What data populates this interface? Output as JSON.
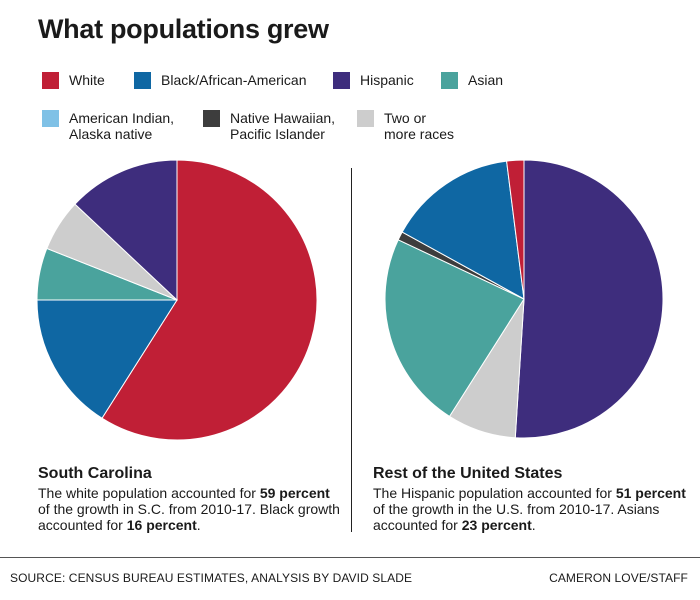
{
  "title": "What populations grew",
  "legend": [
    {
      "lines": [
        "White"
      ],
      "color": "#c01f36"
    },
    {
      "lines": [
        "Black/African-American"
      ],
      "color": "#0f67a3"
    },
    {
      "lines": [
        "Hispanic"
      ],
      "color": "#3e2d7d"
    },
    {
      "lines": [
        "Asian"
      ],
      "color": "#4aa39d"
    },
    {
      "lines": [
        "American Indian,",
        "Alaska native"
      ],
      "color": "#7fc1e6"
    },
    {
      "lines": [
        "Native Hawaiian,",
        "Pacific Islander"
      ],
      "color": "#3d3d3d"
    },
    {
      "lines": [
        "Two or",
        "more races"
      ],
      "color": "#cdcdcd"
    }
  ],
  "chart_data": [
    {
      "type": "pie",
      "title": "South Carolina",
      "categories": [
        "White",
        "Black/African-American",
        "Asian",
        "Two or more races",
        "Hispanic"
      ],
      "values": [
        59,
        16,
        6,
        6,
        13
      ],
      "colors": [
        "#c01f36",
        "#0f67a3",
        "#4aa39d",
        "#cdcdcd",
        "#3e2d7d"
      ],
      "description_parts": [
        {
          "text": "The white population accounted for ",
          "bold": false
        },
        {
          "text": "59 percent",
          "bold": true
        },
        {
          "text": " of the growth in S.C. from 2010-17. Black growth accounted for ",
          "bold": false
        },
        {
          "text": "16 percent",
          "bold": true
        },
        {
          "text": ".",
          "bold": false
        }
      ]
    },
    {
      "type": "pie",
      "title": "Rest of the United States",
      "categories": [
        "Hispanic",
        "Two or more races",
        "Asian",
        "Native Hawaiian, Pacific Islander",
        "Black/African-American",
        "White"
      ],
      "values": [
        51,
        8,
        23,
        1,
        15,
        2
      ],
      "colors": [
        "#3e2d7d",
        "#cdcdcd",
        "#4aa39d",
        "#3d3d3d",
        "#0f67a3",
        "#c01f36"
      ],
      "description_parts": [
        {
          "text": "The Hispanic population accounted for ",
          "bold": false
        },
        {
          "text": "51 percent",
          "bold": true
        },
        {
          "text": " of the growth in the U.S. from 2010-17. Asians accounted for ",
          "bold": false
        },
        {
          "text": "23 percent",
          "bold": true
        },
        {
          "text": ".",
          "bold": false
        }
      ]
    }
  ],
  "footer": {
    "source": "SOURCE: CENSUS BUREAU ESTIMATES, ANALYSIS BY DAVID SLADE",
    "credit": "CAMERON LOVE/STAFF"
  }
}
